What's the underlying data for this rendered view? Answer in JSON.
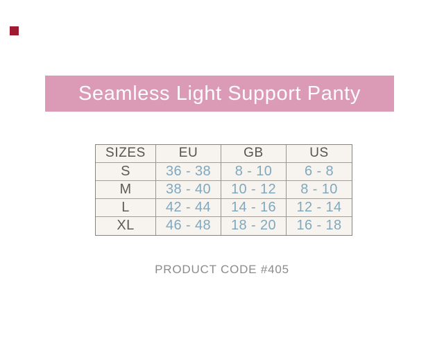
{
  "corner_marker": {
    "color": "#9e1b32"
  },
  "banner": {
    "title": "Seamless Light Support Panty",
    "background_color": "#db9bb7",
    "text_color": "#fdfcfd"
  },
  "chart_data": {
    "type": "table",
    "title": "Seamless Light Support Panty",
    "columns": [
      "SIZES",
      "EU",
      "GB",
      "US"
    ],
    "rows": [
      [
        "S",
        "36 - 38",
        "8 - 10",
        "6 - 8"
      ],
      [
        "M",
        "38 - 40",
        "10 - 12",
        "8 - 10"
      ],
      [
        "L",
        "42 - 44",
        "14 - 16",
        "12 - 14"
      ],
      [
        "XL",
        "46 - 48",
        "18 - 20",
        "16 - 18"
      ]
    ],
    "cell_background": "#f7f4ef",
    "border_color": "#98948d",
    "header_text_color": "#56544f",
    "size_label_color": "#5d5b56",
    "value_text_color": "#7fa8be"
  },
  "footer": {
    "product_code": "PRODUCT CODE #405",
    "text_color": "#8b8b8b"
  }
}
